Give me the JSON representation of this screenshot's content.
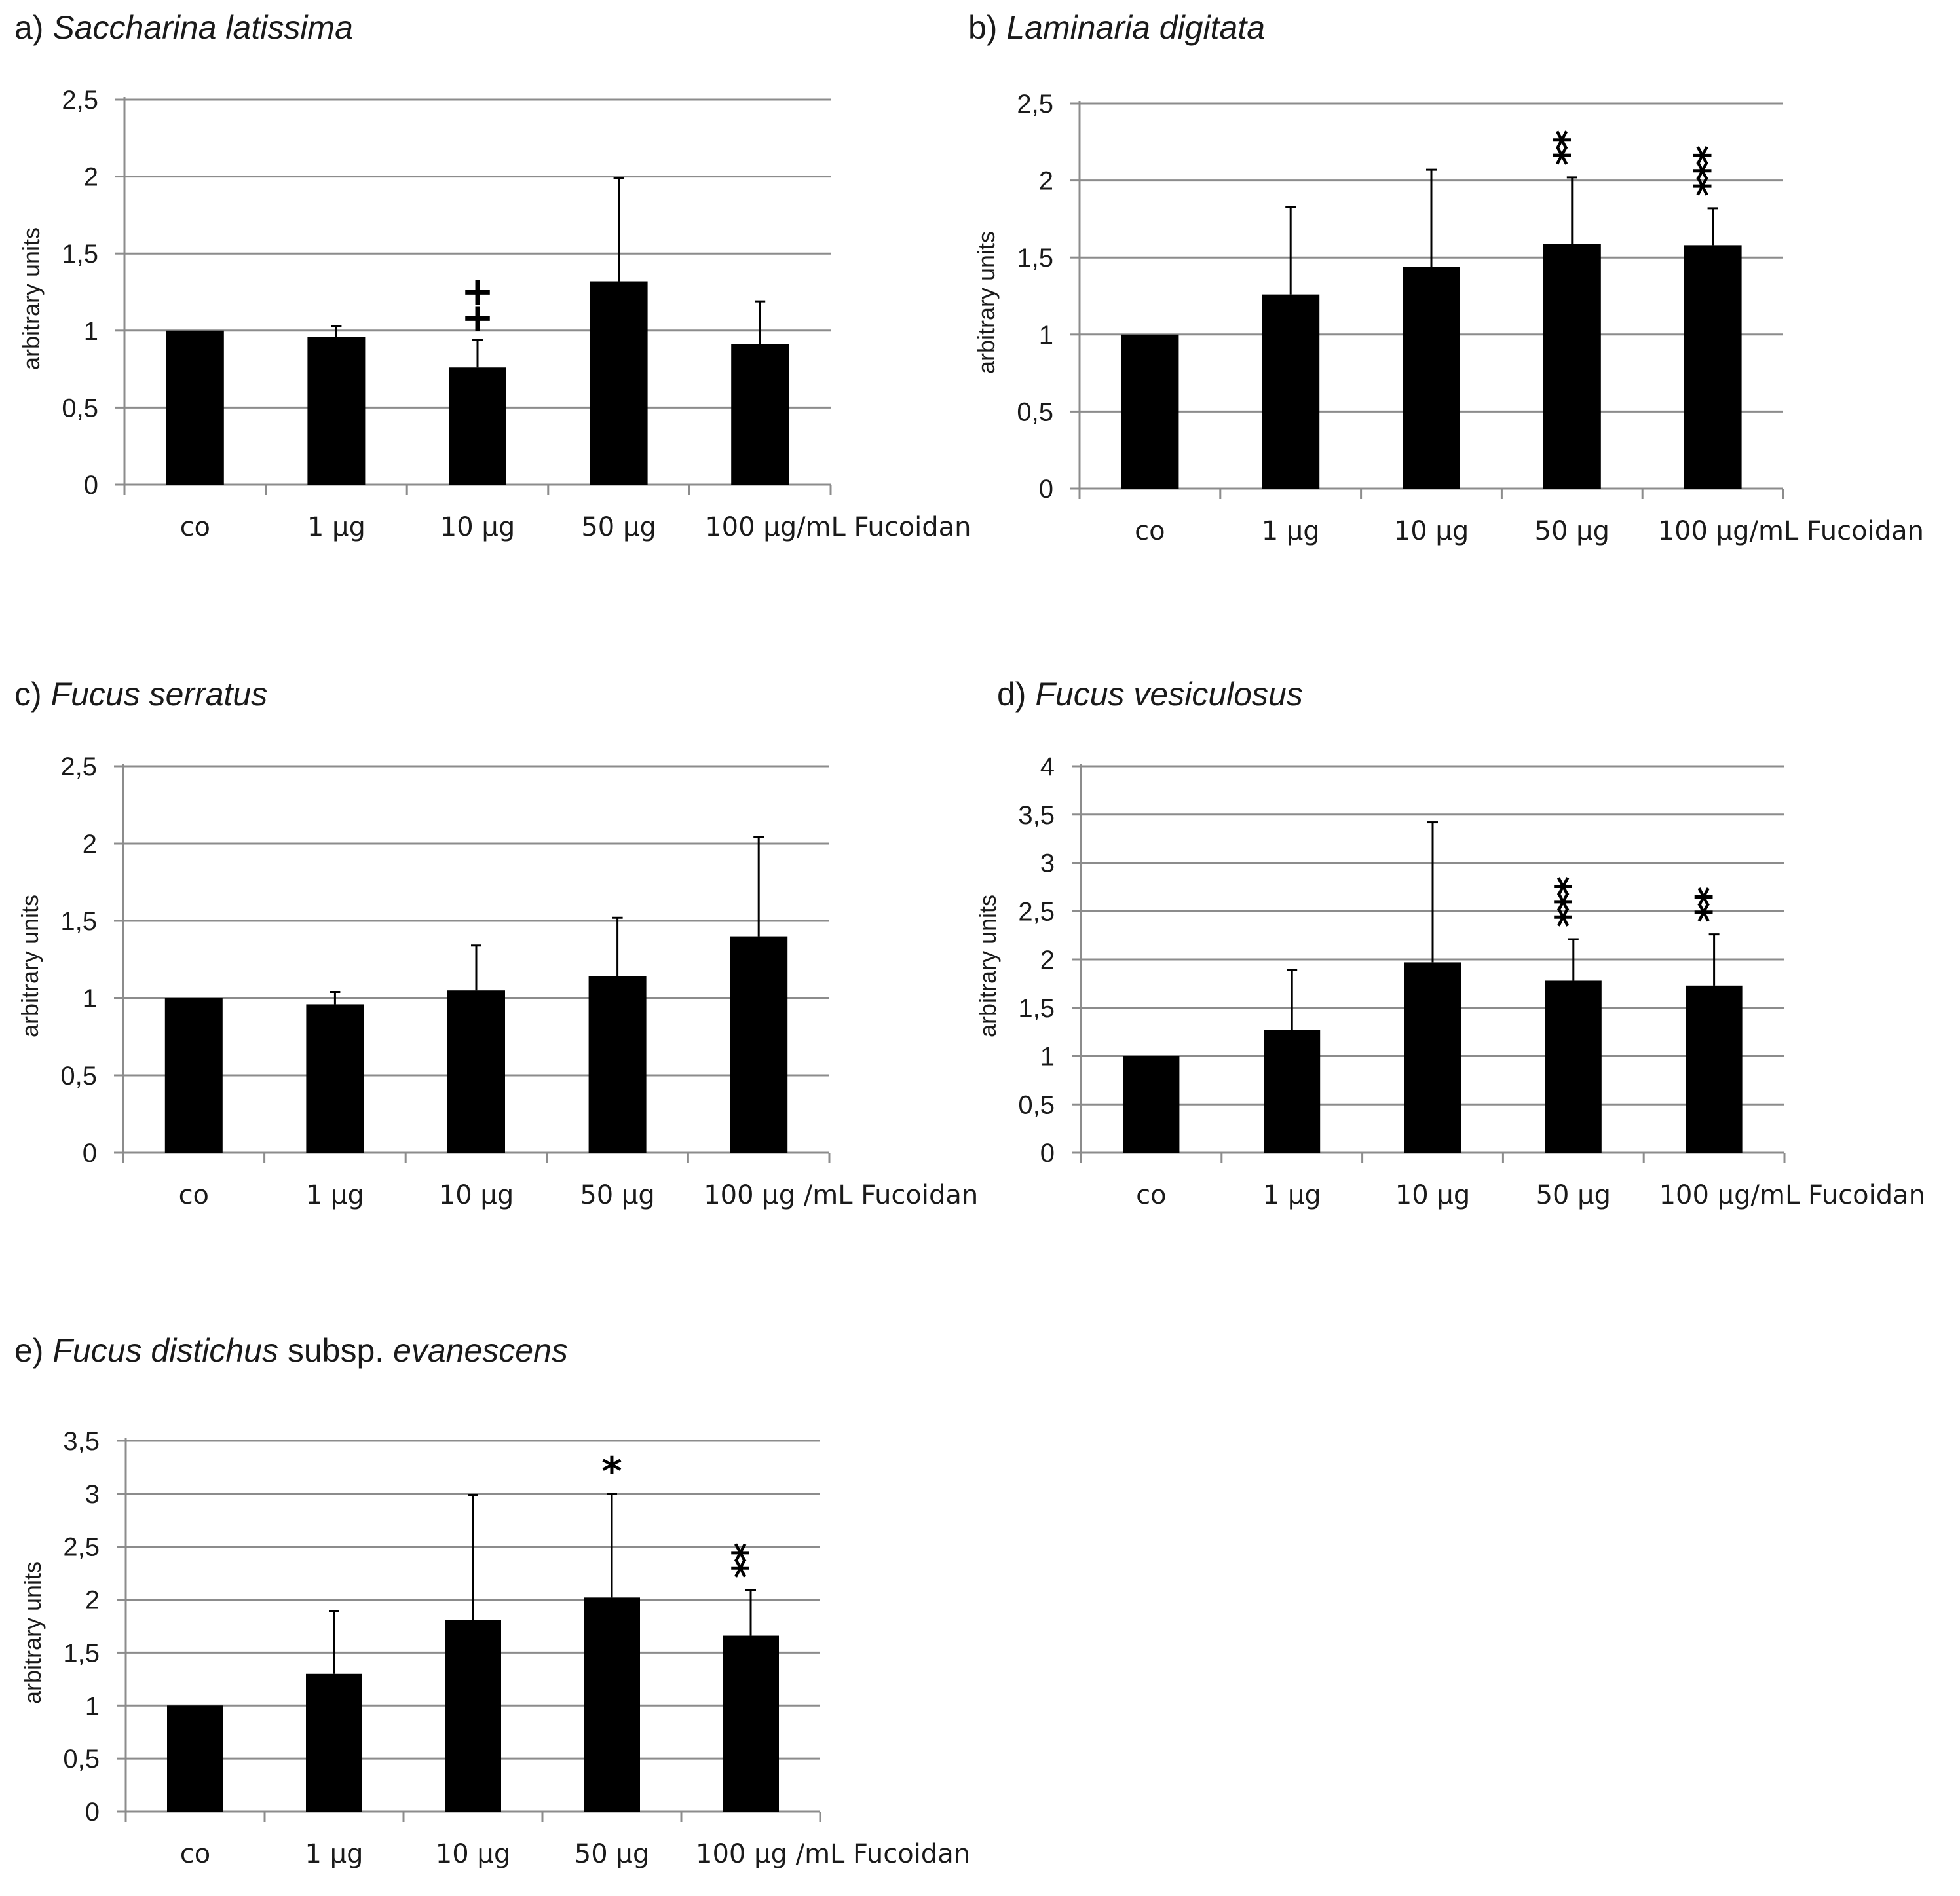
{
  "figure": {
    "description_free": true
  },
  "chart_data": [
    {
      "id": "a",
      "type": "bar",
      "panel_label": "a)",
      "title_parts": [
        {
          "text": "Saccharina latissima",
          "italic": true
        }
      ],
      "ylabel": "arbitrary units",
      "categories": [
        "co",
        "1 µg",
        "10 µg",
        "50 µg",
        "100 µg/mL Fucoidan"
      ],
      "values": [
        1.0,
        0.96,
        0.76,
        1.32,
        0.91
      ],
      "errors": [
        0.0,
        0.07,
        0.18,
        0.67,
        0.28
      ],
      "annotations": [
        "",
        "",
        "+\n+",
        "",
        ""
      ],
      "ylim": [
        0,
        2.5
      ],
      "yticks": [
        0,
        0.5,
        1,
        1.5,
        2,
        2.5
      ],
      "ytick_labels": [
        "0",
        "0,5",
        "1",
        "1,5",
        "2",
        "2,5"
      ],
      "grid": true
    },
    {
      "id": "b",
      "type": "bar",
      "panel_label": "b)",
      "title_parts": [
        {
          "text": "Laminaria digitata",
          "italic": true
        }
      ],
      "ylabel": "arbitrary units",
      "categories": [
        "co",
        "1 µg",
        "10 µg",
        "50 µg",
        "100 µg/mL Fucoidan"
      ],
      "values": [
        1.0,
        1.26,
        1.44,
        1.59,
        1.58
      ],
      "errors": [
        0.0,
        0.57,
        0.63,
        0.43,
        0.24
      ],
      "annotations": [
        "",
        "",
        "",
        "**",
        "***"
      ],
      "ylim": [
        0,
        2.5
      ],
      "yticks": [
        0,
        0.5,
        1,
        1.5,
        2,
        2.5
      ],
      "ytick_labels": [
        "0",
        "0,5",
        "1",
        "1,5",
        "2",
        "2,5"
      ],
      "grid": true
    },
    {
      "id": "c",
      "type": "bar",
      "panel_label": "c)",
      "title_parts": [
        {
          "text": "Fucus serratus",
          "italic": true
        }
      ],
      "ylabel": "arbitrary units",
      "categories": [
        "co",
        "1 µg",
        "10 µg",
        "50 µg",
        "100 µg /mL Fucoidan"
      ],
      "values": [
        1.0,
        0.96,
        1.05,
        1.14,
        1.4
      ],
      "errors": [
        0.0,
        0.08,
        0.29,
        0.38,
        0.64
      ],
      "annotations": [
        "",
        "",
        "",
        "",
        ""
      ],
      "ylim": [
        0,
        2.5
      ],
      "yticks": [
        0,
        0.5,
        1,
        1.5,
        2,
        2.5
      ],
      "ytick_labels": [
        "0",
        "0,5",
        "1",
        "1,5",
        "2",
        "2,5"
      ],
      "grid": true
    },
    {
      "id": "d",
      "type": "bar",
      "panel_label": "d)",
      "title_parts": [
        {
          "text": "Fucus vesiculosus",
          "italic": true
        }
      ],
      "ylabel": "arbitrary units",
      "categories": [
        "co",
        "1 µg",
        "10 µg",
        "50 µg",
        "100 µg/mL Fucoidan"
      ],
      "values": [
        1.0,
        1.27,
        1.97,
        1.78,
        1.73
      ],
      "errors": [
        0.0,
        0.62,
        1.45,
        0.43,
        0.53
      ],
      "annotations": [
        "",
        "",
        "",
        "***",
        "**"
      ],
      "ylim": [
        0,
        4
      ],
      "yticks": [
        0,
        0.5,
        1,
        1.5,
        2,
        2.5,
        3,
        3.5,
        4
      ],
      "ytick_labels": [
        "0",
        "0,5",
        "1",
        "1,5",
        "2",
        "2,5",
        "3",
        "3,5",
        "4"
      ],
      "grid": true
    },
    {
      "id": "e",
      "type": "bar",
      "panel_label": "e)",
      "title_parts": [
        {
          "text": "Fucus distichus",
          "italic": true
        },
        {
          "text": " subsp. ",
          "italic": false
        },
        {
          "text": "evanescens",
          "italic": true
        }
      ],
      "ylabel": "arbitrary units",
      "categories": [
        "co",
        "1 µg",
        "10 µg",
        "50 µg",
        "100 µg /mL Fucoidan"
      ],
      "values": [
        1.0,
        1.3,
        1.81,
        2.02,
        1.66
      ],
      "errors": [
        0.0,
        0.59,
        1.18,
        0.98,
        0.43
      ],
      "annotations": [
        "",
        "",
        "",
        "*",
        "**"
      ],
      "ylim": [
        0,
        3.5
      ],
      "yticks": [
        0,
        0.5,
        1,
        1.5,
        2,
        2.5,
        3,
        3.5
      ],
      "ytick_labels": [
        "0",
        "0,5",
        "1",
        "1,5",
        "2",
        "2,5",
        "3",
        "3,5"
      ],
      "grid": true
    }
  ]
}
